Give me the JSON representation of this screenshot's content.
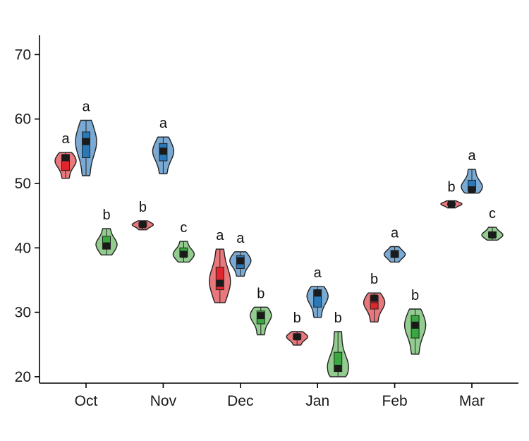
{
  "chart_data": {
    "type": "violin",
    "title": "",
    "xlabel": "",
    "ylabel": "",
    "ylim": [
      19,
      73
    ],
    "yticks": [
      20,
      30,
      40,
      50,
      60,
      70
    ],
    "categories": [
      "Oct",
      "Nov",
      "Dec",
      "Jan",
      "Feb",
      "Mar"
    ],
    "series_colors": {
      "fill": [
        "#e9787c",
        "#7aaad4",
        "#92cc8e"
      ],
      "box": [
        "#e0262c",
        "#2a78b8",
        "#3aa840"
      ]
    },
    "groups": [
      {
        "category": "Oct",
        "violins": [
          {
            "series": 0,
            "min": 50.8,
            "max": 54.8,
            "q1": 52.0,
            "median": 53.5,
            "q3": 54.5,
            "mean": 54.0,
            "sig": "a"
          },
          {
            "series": 1,
            "min": 51.2,
            "max": 59.8,
            "q1": 54.0,
            "median": 56.5,
            "q3": 58.0,
            "mean": 56.5,
            "sig": "a"
          },
          {
            "series": 2,
            "min": 38.9,
            "max": 43.0,
            "q1": 39.8,
            "median": 40.5,
            "q3": 41.8,
            "mean": 40.3,
            "sig": "b"
          }
        ]
      },
      {
        "category": "Nov",
        "violins": [
          {
            "series": 0,
            "min": 42.8,
            "max": 44.2,
            "q1": 43.3,
            "median": 43.6,
            "q3": 43.9,
            "mean": 43.6,
            "sig": "b"
          },
          {
            "series": 1,
            "min": 51.5,
            "max": 57.2,
            "q1": 53.5,
            "median": 55.0,
            "q3": 56.2,
            "mean": 55.0,
            "sig": "a"
          },
          {
            "series": 2,
            "min": 37.8,
            "max": 41.0,
            "q1": 38.6,
            "median": 39.0,
            "q3": 40.0,
            "mean": 39.0,
            "sig": "c"
          }
        ]
      },
      {
        "category": "Dec",
        "violins": [
          {
            "series": 0,
            "min": 31.5,
            "max": 39.8,
            "q1": 33.5,
            "median": 34.8,
            "q3": 37.0,
            "mean": 34.5,
            "sig": "a"
          },
          {
            "series": 1,
            "min": 35.6,
            "max": 39.4,
            "q1": 36.8,
            "median": 38.0,
            "q3": 38.8,
            "mean": 38.0,
            "sig": "a"
          },
          {
            "series": 2,
            "min": 26.5,
            "max": 30.8,
            "q1": 28.2,
            "median": 29.5,
            "q3": 30.2,
            "mean": 29.5,
            "sig": "b"
          }
        ]
      },
      {
        "category": "Jan",
        "violins": [
          {
            "series": 0,
            "min": 24.9,
            "max": 27.0,
            "q1": 25.8,
            "median": 26.2,
            "q3": 26.6,
            "mean": 26.2,
            "sig": "b"
          },
          {
            "series": 1,
            "min": 29.2,
            "max": 34.0,
            "q1": 30.8,
            "median": 32.5,
            "q3": 33.5,
            "mean": 33.0,
            "sig": "a"
          },
          {
            "series": 2,
            "min": 20.0,
            "max": 27.0,
            "q1": 20.8,
            "median": 21.5,
            "q3": 23.8,
            "mean": 21.3,
            "sig": "b"
          }
        ]
      },
      {
        "category": "Feb",
        "violins": [
          {
            "series": 0,
            "min": 28.5,
            "max": 33.0,
            "q1": 30.5,
            "median": 31.5,
            "q3": 32.6,
            "mean": 32.2,
            "sig": "b"
          },
          {
            "series": 1,
            "min": 37.8,
            "max": 40.2,
            "q1": 38.5,
            "median": 39.0,
            "q3": 39.6,
            "mean": 39.0,
            "sig": "a"
          },
          {
            "series": 2,
            "min": 23.5,
            "max": 30.5,
            "q1": 26.0,
            "median": 28.0,
            "q3": 29.5,
            "mean": 28.0,
            "sig": "b"
          }
        ]
      },
      {
        "category": "Mar",
        "violins": [
          {
            "series": 0,
            "min": 46.2,
            "max": 47.3,
            "q1": 46.6,
            "median": 46.8,
            "q3": 47.0,
            "mean": 46.8,
            "sig": "b"
          },
          {
            "series": 1,
            "min": 48.5,
            "max": 52.2,
            "q1": 48.8,
            "median": 49.5,
            "q3": 50.5,
            "mean": 49.0,
            "sig": "a"
          },
          {
            "series": 2,
            "min": 41.2,
            "max": 43.2,
            "q1": 41.6,
            "median": 42.0,
            "q3": 42.5,
            "mean": 42.0,
            "sig": "c"
          }
        ]
      }
    ]
  }
}
